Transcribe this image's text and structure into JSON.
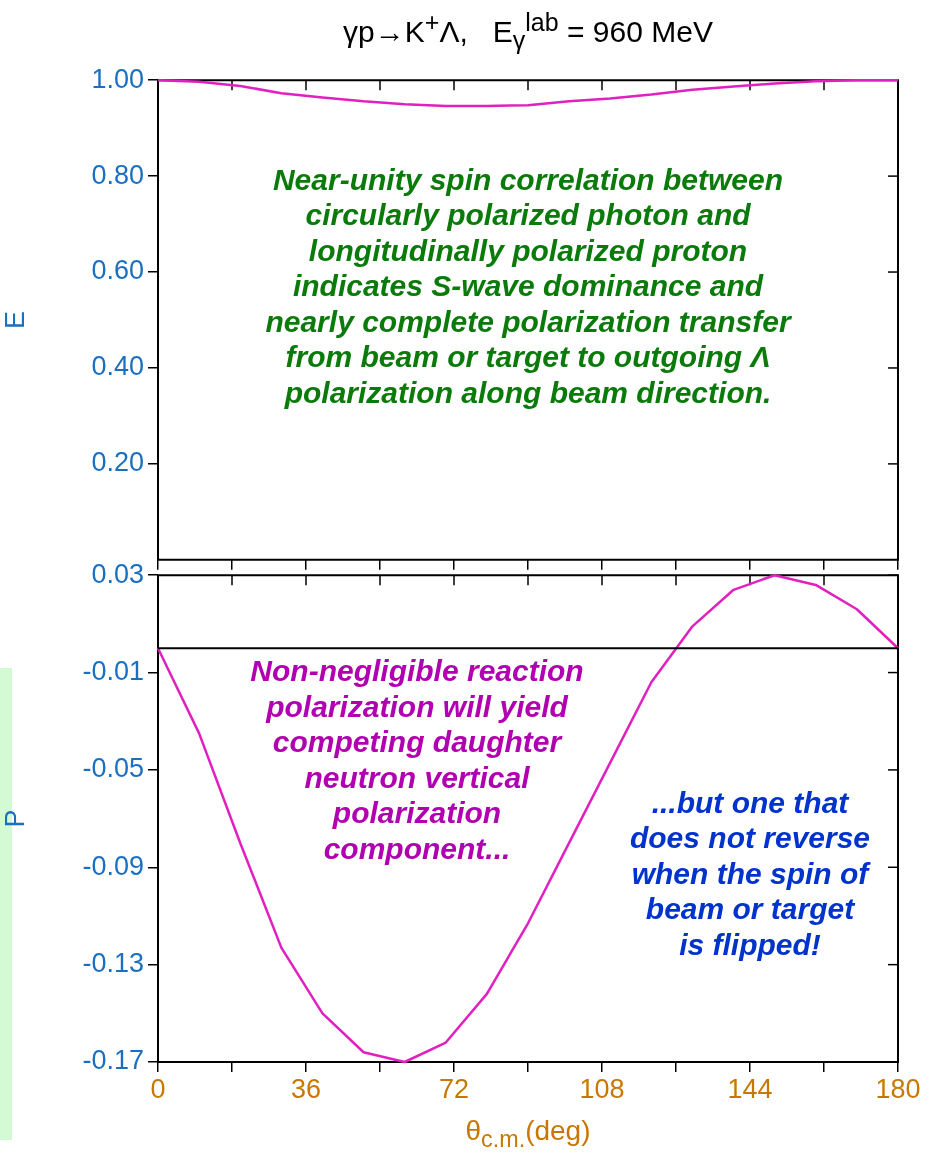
{
  "chart_data": [
    {
      "type": "line",
      "title": "γp→K$^{+}$Λ,   E$_{γ}$$^{lab}$ = 960 MeV",
      "ylabel": "E",
      "x": [
        0,
        10,
        20,
        30,
        40,
        50,
        60,
        70,
        80,
        90,
        100,
        110,
        120,
        130,
        140,
        150,
        160,
        170,
        180
      ],
      "series": [
        {
          "color": "#e020c0",
          "values": [
            1.0,
            0.997,
            0.988,
            0.973,
            0.964,
            0.956,
            0.95,
            0.946,
            0.946,
            0.948,
            0.956,
            0.962,
            0.97,
            0.98,
            0.987,
            0.993,
            0.998,
            1.0,
            1.0
          ]
        }
      ],
      "xlim": [
        0,
        180
      ],
      "xticks": [
        {
          "value": 0,
          "label": null
        },
        {
          "value": 18,
          "label": null
        },
        {
          "value": 36,
          "label": null
        },
        {
          "value": 54,
          "label": null
        },
        {
          "value": 72,
          "label": null
        },
        {
          "value": 90,
          "label": null
        },
        {
          "value": 108,
          "label": null
        },
        {
          "value": 126,
          "label": null
        },
        {
          "value": 144,
          "label": null
        },
        {
          "value": 162,
          "label": null
        },
        {
          "value": 180,
          "label": null
        }
      ],
      "ylim": [
        0,
        1
      ],
      "yticks": [
        {
          "value": 0.2,
          "label": "0.20"
        },
        {
          "value": 0.4,
          "label": "0.40"
        },
        {
          "value": 0.6,
          "label": "0.60"
        },
        {
          "value": 0.8,
          "label": "0.80"
        },
        {
          "value": 1,
          "label": "1.00"
        }
      ],
      "tick_labels": "y",
      "grid": false,
      "legend": false,
      "marker": "none",
      "line_style": "solid",
      "annotations": [
        "Near-unity spin correlation between\ncircularly polarized photon and\nlongitudinally polarized proton\nindicates S-wave dominance and\nnearly complete polarization transfer\nfrom beam or target to outgoing Λ\npolarization along beam direction."
      ]
    },
    {
      "type": "line",
      "xlabel": "θ$_{c.m.}$(deg)",
      "ylabel": "P",
      "x": [
        0,
        10,
        20,
        30,
        40,
        50,
        60,
        70,
        80,
        90,
        100,
        110,
        120,
        130,
        140,
        150,
        160,
        170,
        180
      ],
      "series": [
        {
          "color": "#e020c0",
          "values": [
            0,
            -0.035,
            -0.08,
            -0.123,
            -0.15,
            -0.166,
            -0.17,
            -0.162,
            -0.142,
            -0.113,
            -0.08,
            -0.047,
            -0.014,
            0.009,
            0.024,
            0.03,
            0.026,
            0.016,
            0
          ]
        }
      ],
      "xlim": [
        0,
        180
      ],
      "xticks": [
        0,
        {
          "value": 18,
          "label": null
        },
        36,
        {
          "value": 54,
          "label": null
        },
        72,
        {
          "value": 90,
          "label": null
        },
        108,
        {
          "value": 126,
          "label": null
        },
        144,
        {
          "value": 162,
          "label": null
        },
        180
      ],
      "ylim": [
        -0.17,
        0.03
      ],
      "yticks": [
        -0.17,
        -0.13,
        -0.09,
        -0.05,
        -0.01,
        0.03
      ],
      "ref_lines": [
        {
          "axis": "y",
          "value": 0,
          "color": "#000000"
        }
      ],
      "grid": false,
      "legend": false,
      "marker": "none",
      "line_style": "solid",
      "annotations": [
        "Non-negligible reaction\npolarization will yield\ncompeting daughter\nneutron vertical\npolarization\ncomponent...",
        "...but one that\ndoes not reverse\nwhen the spin of\nbeam or target\nis flipped!"
      ]
    }
  ]
}
